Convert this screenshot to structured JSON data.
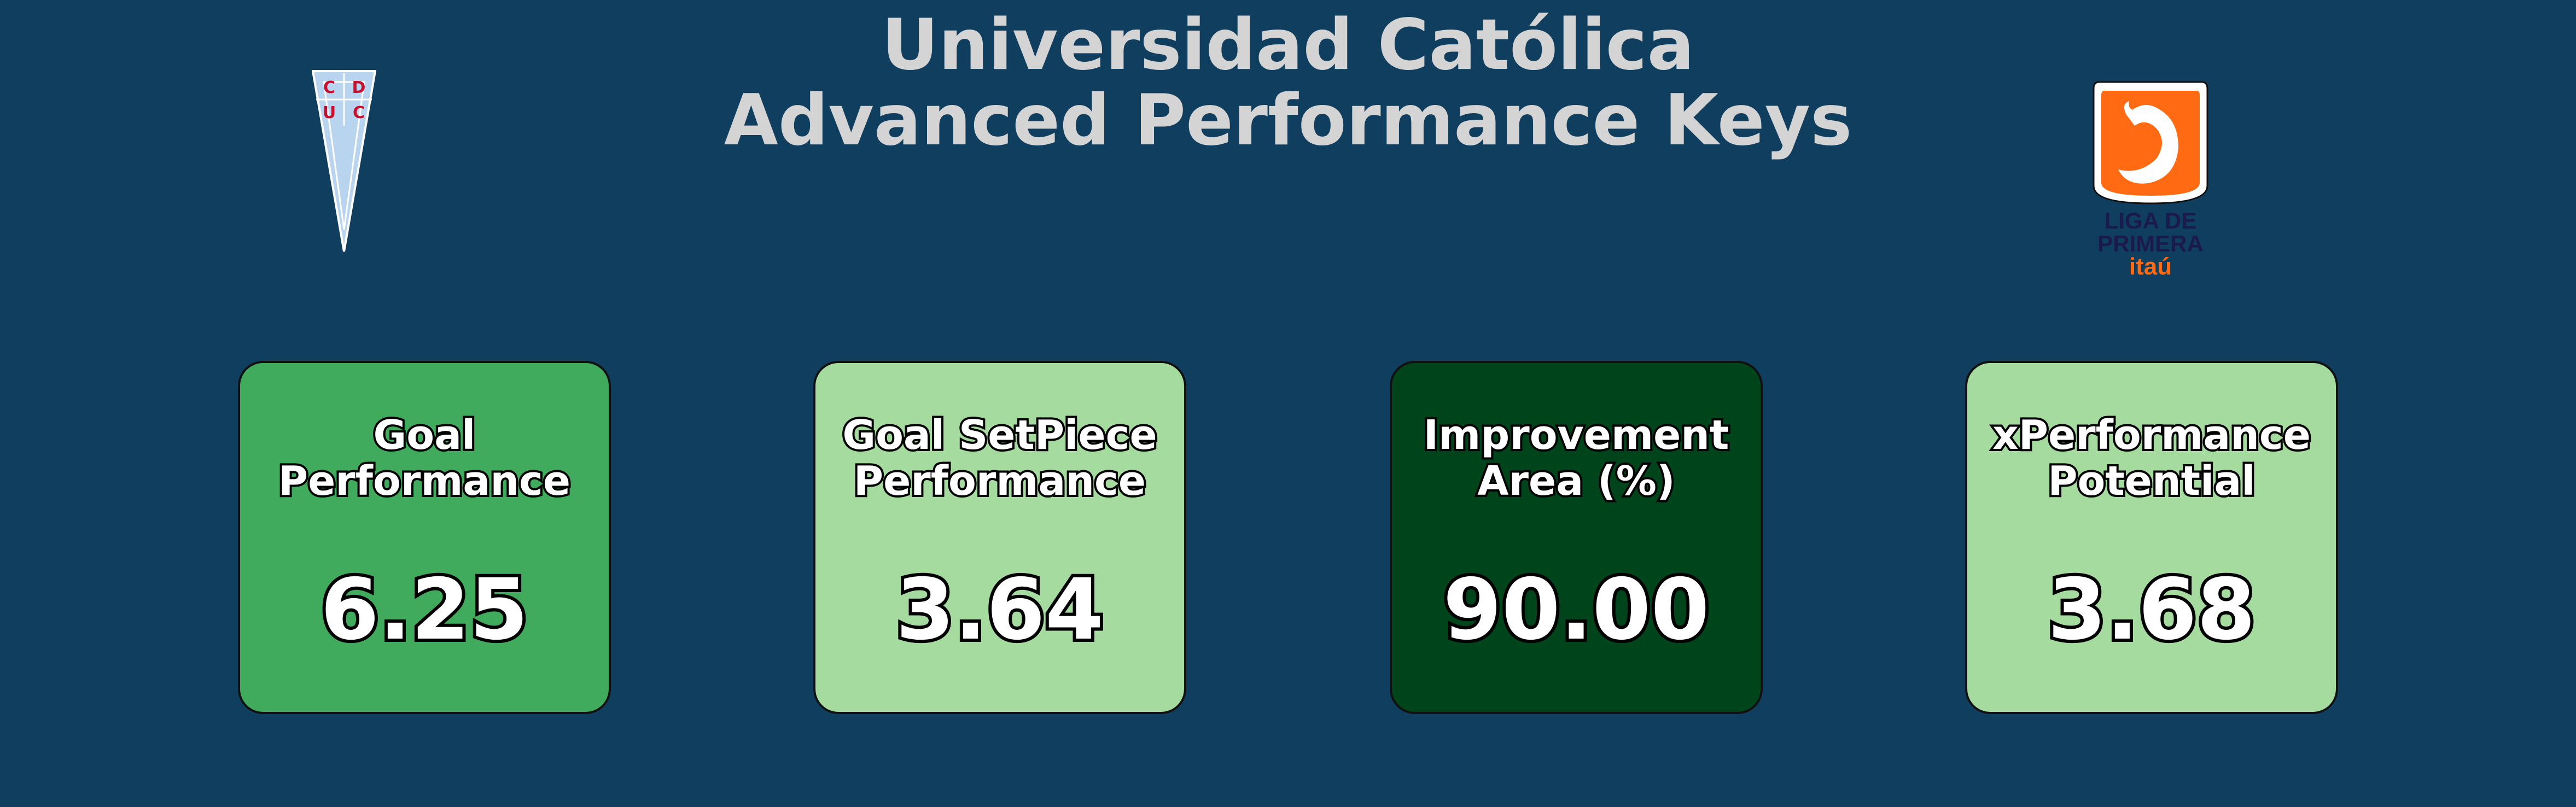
{
  "header": {
    "title_line1": "Universidad Católica",
    "title_line2": "Advanced Performance Keys"
  },
  "logos": {
    "left": {
      "icon": "club-crest-icon",
      "letters_top": [
        "C",
        "D"
      ],
      "letters_bottom": [
        "U",
        "C"
      ]
    },
    "right": {
      "icon": "league-logo-icon",
      "line1": "LIGA DE",
      "line2": "PRIMERA",
      "line3": "itaú"
    }
  },
  "chart_data": {
    "type": "table",
    "cards": [
      {
        "label_line1": "Goal",
        "label_line2": "Performance",
        "value": "6.25",
        "color": "#41ab5d"
      },
      {
        "label_line1": "Goal SetPiece",
        "label_line2": "Performance",
        "value": "3.64",
        "color": "#a6db9f"
      },
      {
        "label_line1": "Improvement",
        "label_line2": "Area (%)",
        "value": "90.00",
        "color": "#00441b"
      },
      {
        "label_line1": "xPerformance",
        "label_line2": "Potential",
        "value": "3.68",
        "color": "#a6db9f"
      }
    ]
  },
  "colors": {
    "background": "#0f3e5e",
    "title": "#d4d4d4",
    "crest_red": "#c8102e",
    "crest_blue": "#b8d4ee",
    "league_orange": "#ff6a13",
    "league_navy": "#1a1a4e"
  }
}
